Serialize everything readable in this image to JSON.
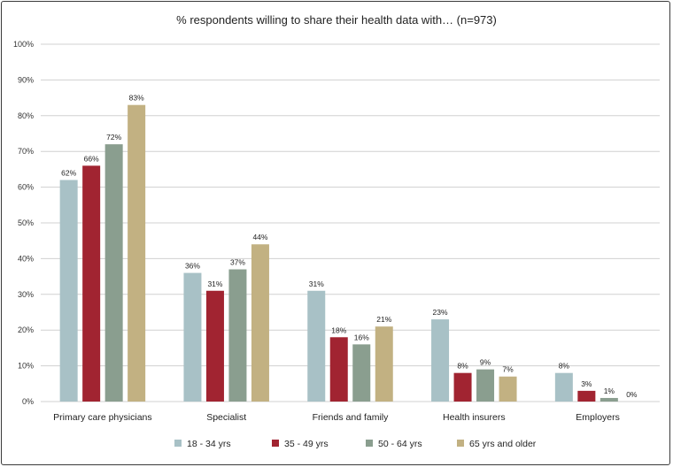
{
  "chart_data": {
    "type": "bar",
    "title": "% respondents willing to share their health data with… (n=973)",
    "xlabel": "",
    "ylabel": "",
    "ylim": [
      0,
      100
    ],
    "yticks": [
      0,
      10,
      20,
      30,
      40,
      50,
      60,
      70,
      80,
      90,
      100
    ],
    "ytick_suffix": "%",
    "grid": true,
    "legend_position": "bottom",
    "categories": [
      "Primary care physicians",
      "Specialist",
      "Friends and family",
      "Health insurers",
      "Employers"
    ],
    "series": [
      {
        "name": "18 - 34 yrs",
        "color": "#a8c1c6",
        "values": [
          62,
          36,
          31,
          23,
          8
        ]
      },
      {
        "name": "35 - 49 yrs",
        "color": "#a12431",
        "values": [
          66,
          31,
          18,
          8,
          3
        ]
      },
      {
        "name": "50 - 64 yrs",
        "color": "#8a9e8f",
        "values": [
          72,
          37,
          16,
          9,
          1
        ]
      },
      {
        "name": "65 yrs and older",
        "color": "#c2b182",
        "values": [
          83,
          44,
          21,
          7,
          0
        ]
      }
    ]
  }
}
